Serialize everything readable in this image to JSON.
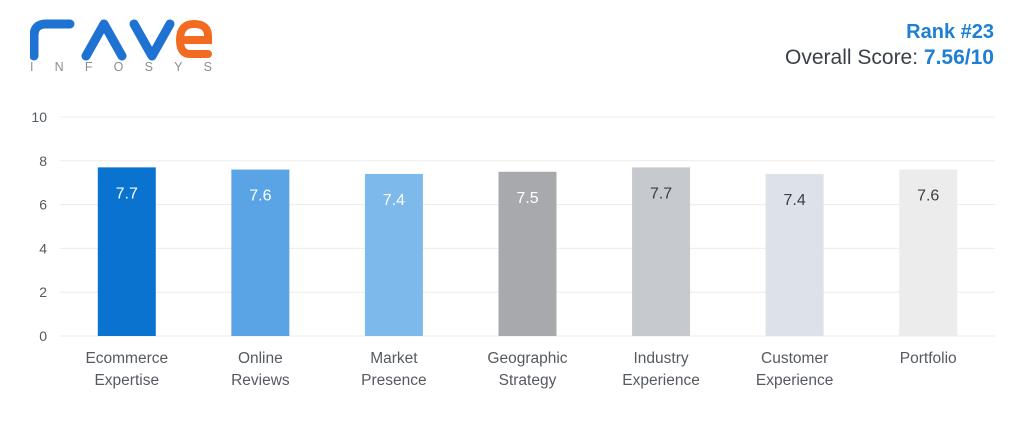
{
  "logo": {
    "name": "rave",
    "sub_letters": [
      "I",
      "N",
      "F",
      "O",
      "S",
      "Y",
      "S"
    ]
  },
  "header": {
    "rank": "Rank #23",
    "score_prefix": "Overall Score:",
    "score_value": "7.56/10"
  },
  "colors": {
    "logo_blue": "#1e73d2",
    "logo_orange": "#f26b21",
    "accent": "#1e7fd6",
    "bars": [
      "#0a73cf",
      "#5aa3e4",
      "#7db9ea",
      "#a7a9ac",
      "#c6c9cd",
      "#dde1e8",
      "#ececec"
    ],
    "bar_label_colors": [
      "#ffffff",
      "#ffffff",
      "#ffffff",
      "#ffffff",
      "#3a3f47",
      "#3a3f47",
      "#3a3f47"
    ]
  },
  "chart_data": {
    "type": "bar",
    "categories": [
      [
        "Ecommerce",
        "Expertise"
      ],
      [
        "Online",
        "Reviews"
      ],
      [
        "Market",
        "Presence"
      ],
      [
        "Geographic",
        "Strategy"
      ],
      [
        "Industry",
        "Experience"
      ],
      [
        "Customer",
        "Experience"
      ],
      [
        "Portfolio"
      ]
    ],
    "values": [
      7.7,
      7.6,
      7.4,
      7.5,
      7.7,
      7.4,
      7.6
    ],
    "value_labels": [
      "7.7",
      "7.6",
      "7.4",
      "7.5",
      "7.7",
      "7.4",
      "7.6"
    ],
    "ylim": [
      0,
      10
    ],
    "yticks": [
      0,
      2,
      4,
      6,
      8,
      10
    ],
    "grid": true,
    "title": "",
    "xlabel": "",
    "ylabel": ""
  }
}
